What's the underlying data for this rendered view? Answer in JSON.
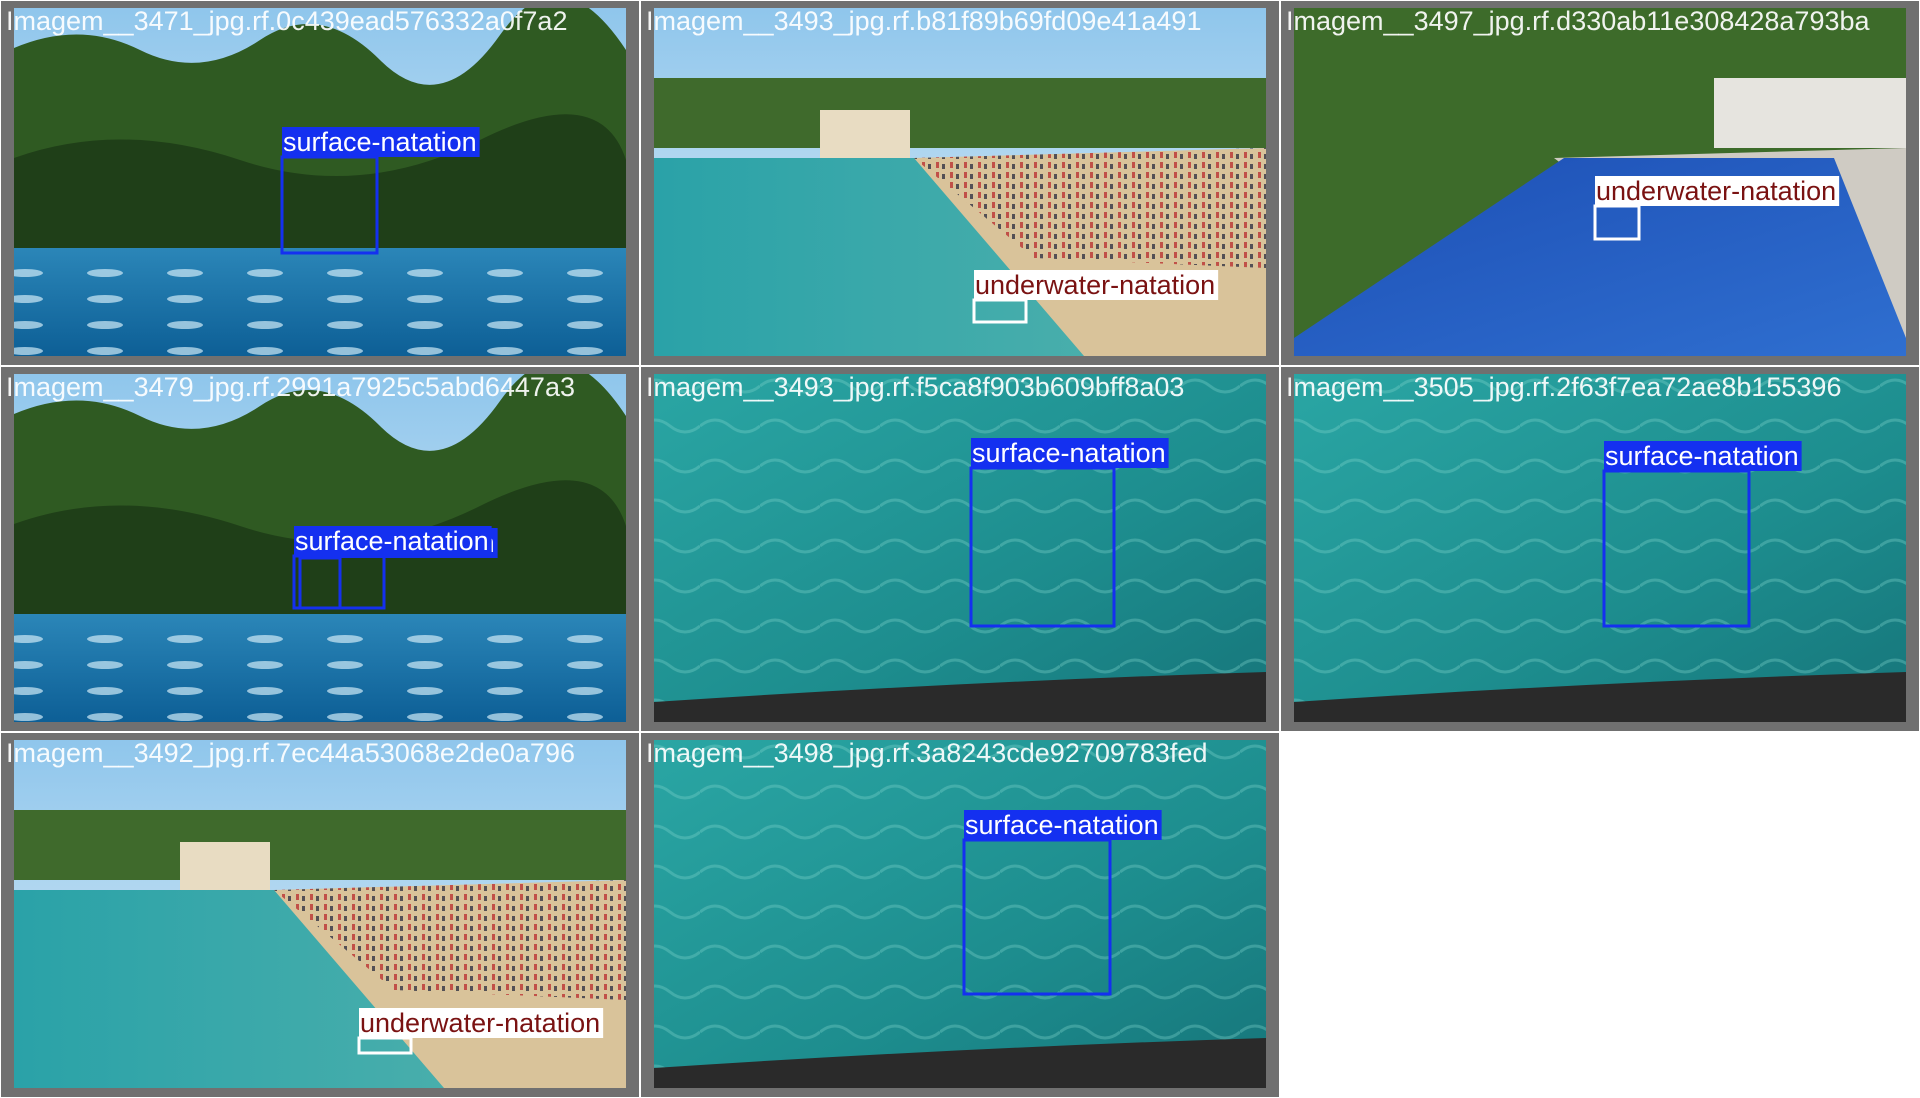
{
  "tiles": [
    {
      "filename": "Imagem__3471_jpg.rf.0c439ead576332a0f7a2",
      "boxes": [
        {
          "label": "surface-natation"
        }
      ]
    },
    {
      "filename": "Imagem__3493_jpg.rf.b81f89b69fd09e41a491",
      "boxes": [
        {
          "label": "underwater-natation"
        }
      ]
    },
    {
      "filename": "Imagem__3497_jpg.rf.d330ab11e308428a793ba",
      "boxes": [
        {
          "label": "underwater-natation"
        }
      ]
    },
    {
      "filename": "Imagem__3479_jpg.rf.2991a7925c5abd6447a3",
      "boxes": [
        {
          "label": "surface-natation"
        },
        {
          "label": "surface-natation"
        }
      ]
    },
    {
      "filename": "Imagem__3493_jpg.rf.f5ca8f903b609bff8a03",
      "boxes": [
        {
          "label": "surface-natation"
        }
      ]
    },
    {
      "filename": "Imagem__3505_jpg.rf.2f63f7ea72ae8b155396",
      "boxes": [
        {
          "label": "surface-natation"
        }
      ]
    },
    {
      "filename": "Imagem__3492_jpg.rf.7ec44a53068e2de0a796",
      "boxes": [
        {
          "label": "underwater-natation"
        }
      ]
    },
    {
      "filename": "Imagem__3498_jpg.rf.3a8243cde92709783fed",
      "boxes": [
        {
          "label": "surface-natation"
        }
      ]
    }
  ]
}
